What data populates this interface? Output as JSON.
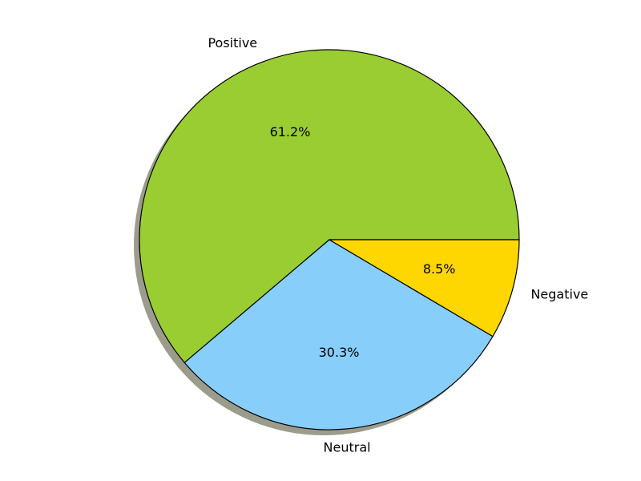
{
  "chart_data": {
    "type": "pie",
    "title": "",
    "labels": [
      "Positive",
      "Neutral",
      "Negative"
    ],
    "values": [
      61.2,
      30.3,
      8.5
    ],
    "value_labels": [
      "61.2%",
      "30.3%",
      "8.5%"
    ],
    "colors": [
      "#9acd32",
      "#87cefa",
      "#ffd700"
    ],
    "start_angle_deg": 0,
    "direction": "counterclockwise",
    "shadow": true,
    "edge_color": "#000000",
    "legend": "none"
  }
}
